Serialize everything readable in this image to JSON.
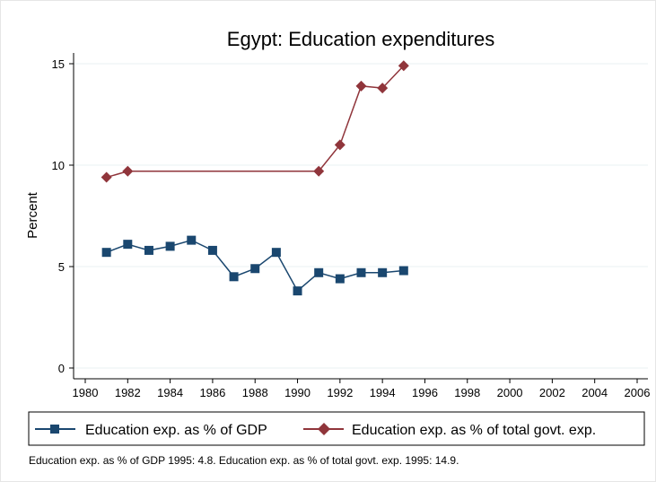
{
  "chart_data": {
    "type": "line",
    "title": "Egypt: Education expenditures",
    "xlabel": "",
    "ylabel": "Percent",
    "xlim": [
      1980,
      2006
    ],
    "ylim": [
      0,
      15
    ],
    "x_ticks": [
      1980,
      1982,
      1984,
      1986,
      1988,
      1990,
      1992,
      1994,
      1996,
      1998,
      2000,
      2002,
      2004,
      2006
    ],
    "y_ticks": [
      0,
      5,
      10,
      15
    ],
    "grid": true,
    "legend_position": "bottom",
    "series": [
      {
        "name": "Education exp. as % of GDP",
        "color": "#1a476f",
        "marker": "square",
        "x": [
          1981,
          1982,
          1983,
          1984,
          1985,
          1986,
          1987,
          1988,
          1989,
          1990,
          1991,
          1992,
          1993,
          1994,
          1995
        ],
        "y": [
          5.7,
          6.1,
          5.8,
          6.0,
          6.3,
          5.8,
          4.5,
          4.9,
          5.7,
          3.8,
          4.7,
          4.4,
          4.7,
          4.7,
          4.8
        ]
      },
      {
        "name": "Education exp. as % of total govt. exp.",
        "color": "#90353b",
        "marker": "diamond",
        "x": [
          1981,
          1982,
          1991,
          1992,
          1993,
          1994,
          1995
        ],
        "y": [
          9.4,
          9.7,
          9.7,
          11.0,
          13.9,
          13.8,
          14.9
        ]
      }
    ],
    "note": "Education exp. as % of GDP 1995: 4.8. Education exp. as % of total govt. exp. 1995: 14.9."
  }
}
